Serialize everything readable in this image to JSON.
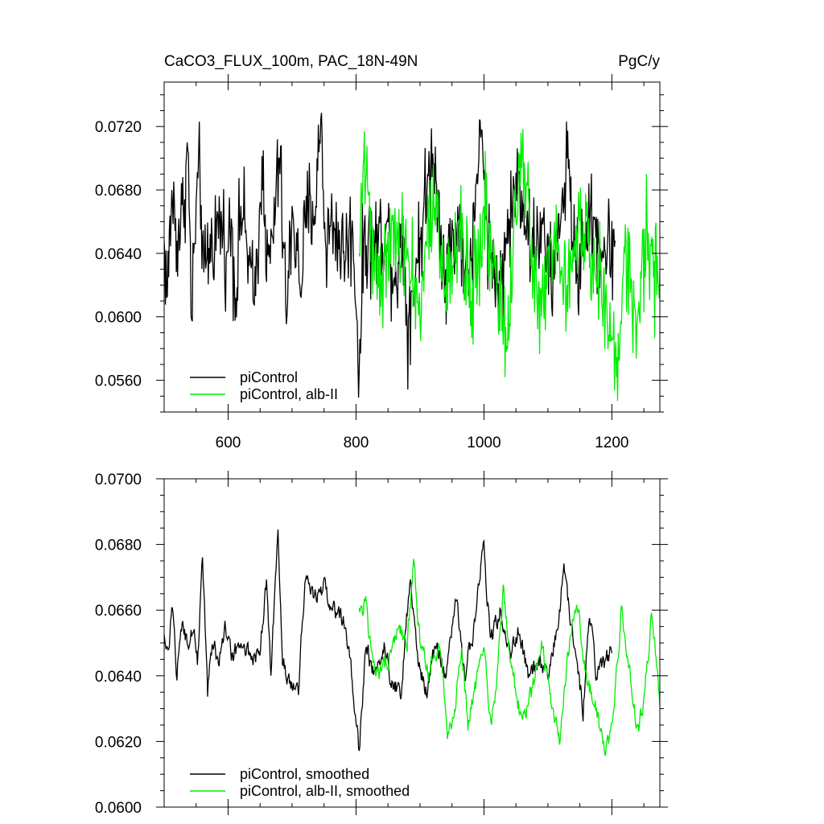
{
  "header": {
    "title_left": "CaCO3_FLUX_100m, PAC_18N-49N",
    "title_right": "PgC/y"
  },
  "colors": {
    "control": "#000000",
    "alb": "#00ee00",
    "axis": "#000000"
  },
  "chart_data": [
    {
      "type": "line",
      "title": "CaCO3_FLUX_100m, PAC_18N-49N",
      "units": "PgC/y",
      "xlim": [
        500,
        1275
      ],
      "ylim": [
        0.054,
        0.0748
      ],
      "x_ticks": [
        600,
        800,
        1000,
        1200
      ],
      "x_tick_labels": [
        "600",
        "800",
        "1000",
        "1200"
      ],
      "y_ticks": [
        0.056,
        0.06,
        0.064,
        0.068,
        0.072
      ],
      "y_tick_labels": [
        "0.0560",
        "0.0600",
        "0.0640",
        "0.0680",
        "0.0720"
      ],
      "legend_position": "bottom-left",
      "series": [
        {
          "name": "piControl",
          "color": "#000000",
          "x_start": 500,
          "x_end": 1205,
          "keypoints": [
            [
              500,
              0.0648
            ],
            [
              505,
              0.0613
            ],
            [
              512,
              0.068
            ],
            [
              520,
              0.0648
            ],
            [
              530,
              0.0668
            ],
            [
              537,
              0.0705
            ],
            [
              543,
              0.0598
            ],
            [
              550,
              0.0672
            ],
            [
              556,
              0.069
            ],
            [
              562,
              0.0628
            ],
            [
              575,
              0.065
            ],
            [
              590,
              0.066
            ],
            [
              598,
              0.0641
            ],
            [
              605,
              0.0662
            ],
            [
              612,
              0.0612
            ],
            [
              620,
              0.067
            ],
            [
              632,
              0.0639
            ],
            [
              640,
              0.0608
            ],
            [
              650,
              0.0672
            ],
            [
              655,
              0.0705
            ],
            [
              660,
              0.0622
            ],
            [
              670,
              0.065
            ],
            [
              680,
              0.07
            ],
            [
              692,
              0.06
            ],
            [
              700,
              0.067
            ],
            [
              712,
              0.062
            ],
            [
              725,
              0.0668
            ],
            [
              737,
              0.067
            ],
            [
              745,
              0.0725
            ],
            [
              752,
              0.0648
            ],
            [
              765,
              0.066
            ],
            [
              780,
              0.064
            ],
            [
              795,
              0.0653
            ],
            [
              800,
              0.0605
            ],
            [
              805,
              0.0566
            ],
            [
              812,
              0.0649
            ],
            [
              830,
              0.0645
            ],
            [
              848,
              0.066
            ],
            [
              860,
              0.0625
            ],
            [
              875,
              0.065
            ],
            [
              880,
              0.0594
            ],
            [
              900,
              0.065
            ],
            [
              920,
              0.0703
            ],
            [
              940,
              0.063
            ],
            [
              960,
              0.066
            ],
            [
              975,
              0.062
            ],
            [
              985,
              0.066
            ],
            [
              995,
              0.0713
            ],
            [
              1010,
              0.064
            ],
            [
              1025,
              0.062
            ],
            [
              1040,
              0.066
            ],
            [
              1055,
              0.069
            ],
            [
              1075,
              0.064
            ],
            [
              1090,
              0.066
            ],
            [
              1105,
              0.062
            ],
            [
              1120,
              0.066
            ],
            [
              1130,
              0.07
            ],
            [
              1145,
              0.0625
            ],
            [
              1160,
              0.066
            ],
            [
              1175,
              0.065
            ],
            [
              1190,
              0.064
            ],
            [
              1205,
              0.0648
            ]
          ]
        },
        {
          "name": "piControl, alb-II",
          "color": "#00ee00",
          "x_start": 805,
          "x_end": 1275,
          "keypoints": [
            [
              805,
              0.064
            ],
            [
              812,
              0.07
            ],
            [
              825,
              0.0655
            ],
            [
              840,
              0.062
            ],
            [
              860,
              0.066
            ],
            [
              880,
              0.064
            ],
            [
              900,
              0.06
            ],
            [
              920,
              0.067
            ],
            [
              940,
              0.062
            ],
            [
              960,
              0.066
            ],
            [
              980,
              0.061
            ],
            [
              1000,
              0.067
            ],
            [
              1020,
              0.062
            ],
            [
              1035,
              0.0578
            ],
            [
              1050,
              0.066
            ],
            [
              1060,
              0.0705
            ],
            [
              1075,
              0.065
            ],
            [
              1090,
              0.06
            ],
            [
              1110,
              0.066
            ],
            [
              1130,
              0.062
            ],
            [
              1150,
              0.066
            ],
            [
              1170,
              0.064
            ],
            [
              1190,
              0.061
            ],
            [
              1207,
              0.0562
            ],
            [
              1220,
              0.064
            ],
            [
              1240,
              0.06
            ],
            [
              1255,
              0.0662
            ],
            [
              1265,
              0.0625
            ],
            [
              1275,
              0.063
            ]
          ]
        }
      ]
    },
    {
      "type": "line",
      "xlim": [
        500,
        1275
      ],
      "ylim": [
        0.06,
        0.07
      ],
      "x_ticks": [
        600,
        800,
        1000,
        1200
      ],
      "y_ticks": [
        0.06,
        0.062,
        0.064,
        0.066,
        0.068,
        0.07
      ],
      "y_tick_labels": [
        "0.0600",
        "0.0620",
        "0.0640",
        "0.0660",
        "0.0680",
        "0.0700"
      ],
      "legend_position": "bottom-left",
      "series": [
        {
          "name": "piControl, smoothed",
          "color": "#000000",
          "x_start": 500,
          "x_end": 1200,
          "keypoints": [
            [
              500,
              0.0652
            ],
            [
              506,
              0.0645
            ],
            [
              512,
              0.066
            ],
            [
              520,
              0.064
            ],
            [
              528,
              0.0657
            ],
            [
              535,
              0.065
            ],
            [
              545,
              0.0655
            ],
            [
              552,
              0.0645
            ],
            [
              560,
              0.0676
            ],
            [
              568,
              0.0635
            ],
            [
              575,
              0.065
            ],
            [
              585,
              0.0645
            ],
            [
              595,
              0.0655
            ],
            [
              605,
              0.0645
            ],
            [
              615,
              0.0648
            ],
            [
              625,
              0.065
            ],
            [
              640,
              0.0645
            ],
            [
              650,
              0.0648
            ],
            [
              660,
              0.0668
            ],
            [
              667,
              0.064
            ],
            [
              678,
              0.0684
            ],
            [
              685,
              0.0645
            ],
            [
              695,
              0.064
            ],
            [
              710,
              0.0635
            ],
            [
              720,
              0.067
            ],
            [
              735,
              0.0665
            ],
            [
              750,
              0.0666
            ],
            [
              765,
              0.066
            ],
            [
              780,
              0.0658
            ],
            [
              790,
              0.0646
            ],
            [
              800,
              0.0625
            ],
            [
              805,
              0.0617
            ],
            [
              815,
              0.0648
            ],
            [
              830,
              0.064
            ],
            [
              845,
              0.065
            ],
            [
              855,
              0.0638
            ],
            [
              870,
              0.0636
            ],
            [
              885,
              0.067
            ],
            [
              895,
              0.0647
            ],
            [
              910,
              0.0635
            ],
            [
              925,
              0.065
            ],
            [
              940,
              0.064
            ],
            [
              955,
              0.0665
            ],
            [
              970,
              0.064
            ],
            [
              985,
              0.0655
            ],
            [
              1000,
              0.068
            ],
            [
              1010,
              0.065
            ],
            [
              1025,
              0.066
            ],
            [
              1040,
              0.0645
            ],
            [
              1055,
              0.0655
            ],
            [
              1070,
              0.0638
            ],
            [
              1085,
              0.0645
            ],
            [
              1100,
              0.064
            ],
            [
              1115,
              0.0655
            ],
            [
              1125,
              0.0672
            ],
            [
              1140,
              0.065
            ],
            [
              1155,
              0.063
            ],
            [
              1165,
              0.066
            ],
            [
              1175,
              0.064
            ],
            [
              1185,
              0.0642
            ],
            [
              1200,
              0.0648
            ]
          ]
        },
        {
          "name": "piControl, alb-II, smoothed",
          "color": "#00ee00",
          "x_start": 805,
          "x_end": 1275,
          "keypoints": [
            [
              805,
              0.066
            ],
            [
              815,
              0.0662
            ],
            [
              825,
              0.0645
            ],
            [
              835,
              0.064
            ],
            [
              850,
              0.0645
            ],
            [
              865,
              0.0655
            ],
            [
              880,
              0.065
            ],
            [
              890,
              0.0677
            ],
            [
              900,
              0.065
            ],
            [
              915,
              0.064
            ],
            [
              930,
              0.065
            ],
            [
              945,
              0.062
            ],
            [
              955,
              0.063
            ],
            [
              965,
              0.065
            ],
            [
              975,
              0.0625
            ],
            [
              990,
              0.064
            ],
            [
              1000,
              0.065
            ],
            [
              1010,
              0.0625
            ],
            [
              1020,
              0.0638
            ],
            [
              1030,
              0.0665
            ],
            [
              1045,
              0.064
            ],
            [
              1060,
              0.0625
            ],
            [
              1075,
              0.0635
            ],
            [
              1090,
              0.065
            ],
            [
              1105,
              0.0632
            ],
            [
              1118,
              0.062
            ],
            [
              1130,
              0.0645
            ],
            [
              1145,
              0.0665
            ],
            [
              1160,
              0.064
            ],
            [
              1175,
              0.063
            ],
            [
              1190,
              0.0615
            ],
            [
              1200,
              0.0625
            ],
            [
              1215,
              0.066
            ],
            [
              1230,
              0.064
            ],
            [
              1240,
              0.0622
            ],
            [
              1252,
              0.0635
            ],
            [
              1262,
              0.0658
            ],
            [
              1270,
              0.0645
            ],
            [
              1275,
              0.0632
            ]
          ]
        }
      ]
    }
  ]
}
